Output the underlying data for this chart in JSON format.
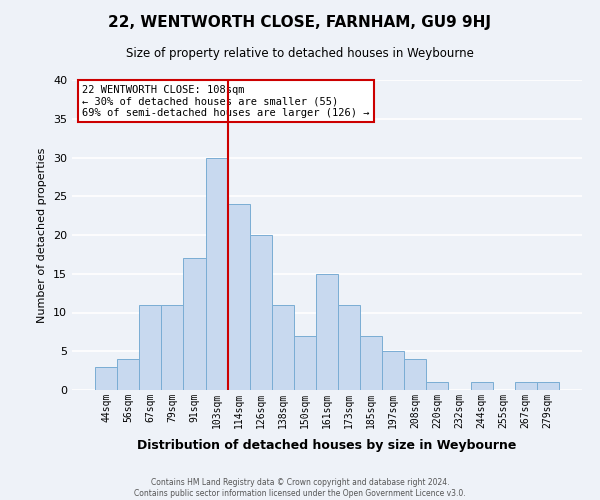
{
  "title": "22, WENTWORTH CLOSE, FARNHAM, GU9 9HJ",
  "subtitle": "Size of property relative to detached houses in Weybourne",
  "xlabel": "Distribution of detached houses by size in Weybourne",
  "ylabel": "Number of detached properties",
  "bar_labels": [
    "44sqm",
    "56sqm",
    "67sqm",
    "79sqm",
    "91sqm",
    "103sqm",
    "114sqm",
    "126sqm",
    "138sqm",
    "150sqm",
    "161sqm",
    "173sqm",
    "185sqm",
    "197sqm",
    "208sqm",
    "220sqm",
    "232sqm",
    "244sqm",
    "255sqm",
    "267sqm",
    "279sqm"
  ],
  "bar_values": [
    3,
    4,
    11,
    11,
    17,
    30,
    24,
    20,
    11,
    7,
    15,
    11,
    7,
    5,
    4,
    1,
    0,
    1,
    0,
    1,
    1
  ],
  "bar_color": "#c8d9ef",
  "bar_edge_color": "#7aadd4",
  "ylim": [
    0,
    40
  ],
  "yticks": [
    0,
    5,
    10,
    15,
    20,
    25,
    30,
    35,
    40
  ],
  "vline_color": "#cc0000",
  "annotation_title": "22 WENTWORTH CLOSE: 108sqm",
  "annotation_line1": "← 30% of detached houses are smaller (55)",
  "annotation_line2": "69% of semi-detached houses are larger (126) →",
  "annotation_box_color": "#ffffff",
  "annotation_box_edge": "#cc0000",
  "background_color": "#eef2f8",
  "grid_color": "#ffffff",
  "footer1": "Contains HM Land Registry data © Crown copyright and database right 2024.",
  "footer2": "Contains public sector information licensed under the Open Government Licence v3.0."
}
